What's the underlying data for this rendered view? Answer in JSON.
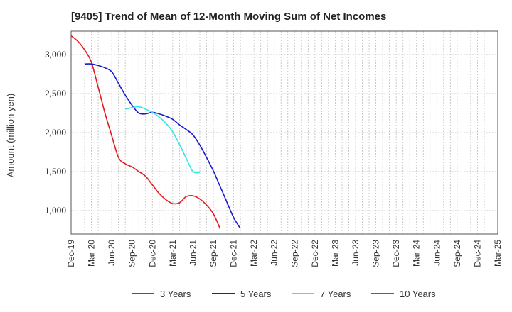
{
  "chart_data": {
    "type": "line",
    "title": "[9405]  Trend of Mean of 12-Month Moving Sum of Net Incomes",
    "xlabel": "",
    "ylabel": "Amount (million yen)",
    "ylim": [
      700,
      3300
    ],
    "yticks": [
      1000,
      1500,
      2000,
      2500,
      3000
    ],
    "ytick_labels": [
      "1,000",
      "1,500",
      "2,000",
      "2,500",
      "3,000"
    ],
    "xtick_labels": [
      "Dec-19",
      "Mar-20",
      "Jun-20",
      "Sep-20",
      "Dec-20",
      "Mar-21",
      "Jun-21",
      "Sep-21",
      "Dec-21",
      "Mar-22",
      "Jun-22",
      "Sep-22",
      "Dec-22",
      "Mar-23",
      "Jun-23",
      "Sep-23",
      "Dec-23",
      "Mar-24",
      "Jun-24",
      "Sep-24",
      "Dec-24",
      "Mar-25"
    ],
    "grid": true,
    "legend_position": "bottom",
    "series": [
      {
        "name": "3 Years",
        "color": "#e31a1c",
        "points": [
          [
            0,
            3240
          ],
          [
            1,
            3170
          ],
          [
            2,
            3060
          ],
          [
            3,
            2900
          ],
          [
            4,
            2580
          ],
          [
            5,
            2250
          ],
          [
            6,
            1960
          ],
          [
            7,
            1680
          ],
          [
            8,
            1600
          ],
          [
            9,
            1560
          ],
          [
            10,
            1500
          ],
          [
            11,
            1440
          ],
          [
            12,
            1330
          ],
          [
            13,
            1220
          ],
          [
            14,
            1140
          ],
          [
            15,
            1090
          ],
          [
            16,
            1100
          ],
          [
            17,
            1180
          ],
          [
            18,
            1190
          ],
          [
            19,
            1150
          ],
          [
            20,
            1070
          ],
          [
            21,
            960
          ],
          [
            22,
            770
          ]
        ]
      },
      {
        "name": "5 Years",
        "color": "#1a1acc",
        "points": [
          [
            2,
            2880
          ],
          [
            3,
            2880
          ],
          [
            4,
            2860
          ],
          [
            5,
            2830
          ],
          [
            6,
            2780
          ],
          [
            7,
            2630
          ],
          [
            8,
            2480
          ],
          [
            9,
            2350
          ],
          [
            10,
            2250
          ],
          [
            11,
            2240
          ],
          [
            12,
            2260
          ],
          [
            13,
            2240
          ],
          [
            14,
            2210
          ],
          [
            15,
            2170
          ],
          [
            16,
            2100
          ],
          [
            17,
            2040
          ],
          [
            18,
            1970
          ],
          [
            19,
            1840
          ],
          [
            20,
            1680
          ],
          [
            21,
            1510
          ],
          [
            22,
            1310
          ],
          [
            23,
            1110
          ],
          [
            24,
            910
          ],
          [
            25,
            770
          ]
        ]
      },
      {
        "name": "7 Years",
        "color": "#33e6e6",
        "points": [
          [
            8,
            2300
          ],
          [
            9,
            2320
          ],
          [
            10,
            2330
          ],
          [
            11,
            2300
          ],
          [
            12,
            2260
          ],
          [
            13,
            2200
          ],
          [
            14,
            2120
          ],
          [
            15,
            2010
          ],
          [
            16,
            1850
          ],
          [
            17,
            1670
          ],
          [
            18,
            1500
          ],
          [
            19,
            1490
          ]
        ]
      },
      {
        "name": "10 Years",
        "color": "#2a8a2a",
        "points": []
      }
    ]
  }
}
